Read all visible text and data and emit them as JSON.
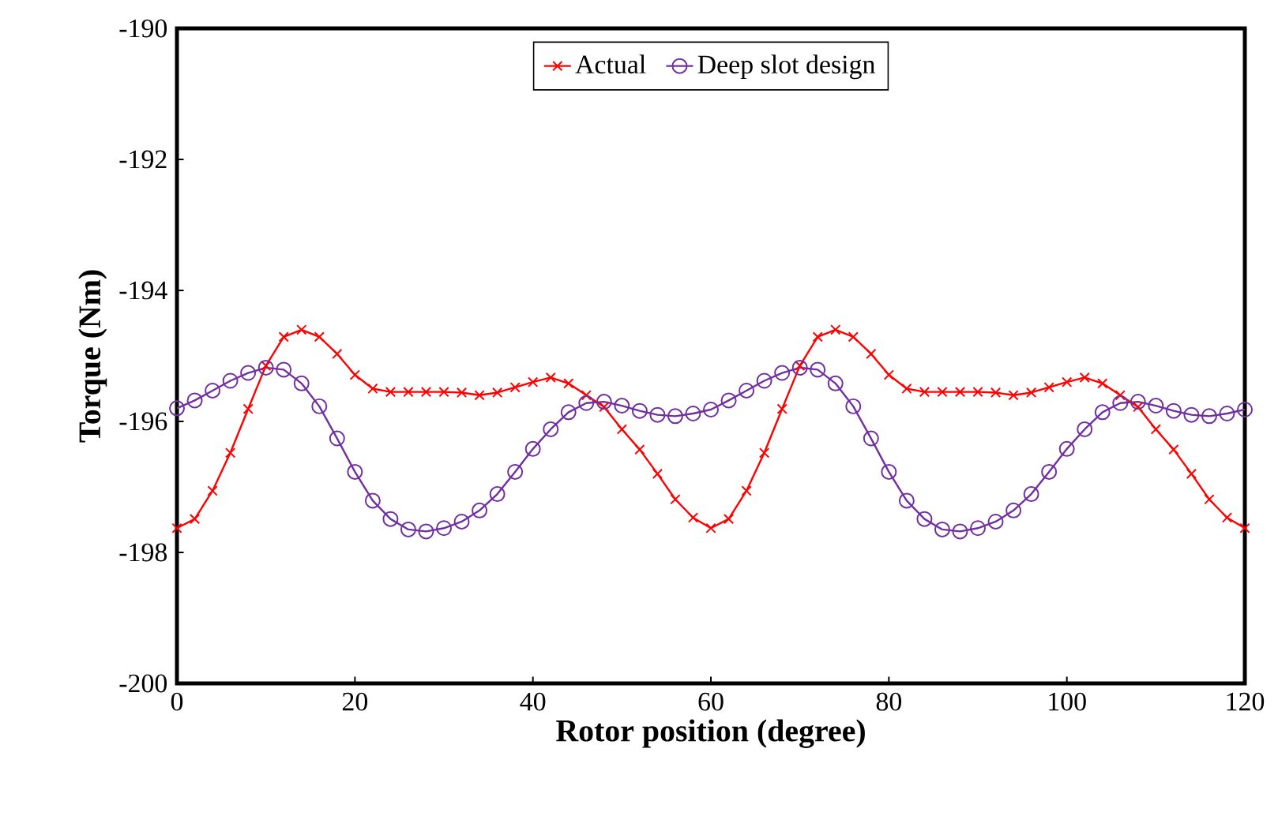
{
  "chart_data": {
    "type": "line",
    "xlabel": "Rotor position (degree)",
    "ylabel": "Torque (Nm)",
    "x": [
      0,
      2,
      4,
      6,
      8,
      10,
      12,
      14,
      16,
      18,
      20,
      22,
      24,
      26,
      28,
      30,
      32,
      34,
      36,
      38,
      40,
      42,
      44,
      46,
      48,
      50,
      52,
      54,
      56,
      58,
      60,
      62,
      64,
      66,
      68,
      70,
      72,
      74,
      76,
      78,
      80,
      82,
      84,
      86,
      88,
      90,
      92,
      94,
      96,
      98,
      100,
      102,
      104,
      106,
      108,
      110,
      112,
      114,
      116,
      118,
      120
    ],
    "series": [
      {
        "name": "Actual",
        "color": "#ff0000",
        "marker": "cross",
        "values": [
          -197.63,
          -197.49,
          -197.06,
          -196.48,
          -195.81,
          -195.15,
          -194.71,
          -194.6,
          -194.71,
          -194.97,
          -195.29,
          -195.5,
          -195.55,
          -195.55,
          -195.55,
          -195.55,
          -195.56,
          -195.6,
          -195.56,
          -195.48,
          -195.4,
          -195.33,
          -195.42,
          -195.6,
          -195.78,
          -196.12,
          -196.43,
          -196.8,
          -197.19,
          -197.47,
          -197.63,
          -197.49,
          -197.06,
          -196.48,
          -195.81,
          -195.15,
          -194.71,
          -194.6,
          -194.71,
          -194.97,
          -195.29,
          -195.5,
          -195.55,
          -195.55,
          -195.55,
          -195.55,
          -195.56,
          -195.6,
          -195.56,
          -195.48,
          -195.4,
          -195.33,
          -195.42,
          -195.6,
          -195.78,
          -196.12,
          -196.43,
          -196.8,
          -197.19,
          -197.47,
          -197.63
        ]
      },
      {
        "name": "Deep slot design",
        "color": "#7030a0",
        "marker": "circle",
        "values": [
          -195.8,
          -195.68,
          -195.53,
          -195.38,
          -195.26,
          -195.18,
          -195.21,
          -195.42,
          -195.77,
          -196.26,
          -196.77,
          -197.21,
          -197.49,
          -197.65,
          -197.68,
          -197.63,
          -197.53,
          -197.36,
          -197.11,
          -196.77,
          -196.42,
          -196.12,
          -195.86,
          -195.72,
          -195.7,
          -195.76,
          -195.84,
          -195.9,
          -195.92,
          -195.88,
          -195.82,
          -195.68,
          -195.53,
          -195.38,
          -195.26,
          -195.18,
          -195.21,
          -195.42,
          -195.77,
          -196.26,
          -196.77,
          -197.21,
          -197.49,
          -197.65,
          -197.68,
          -197.63,
          -197.53,
          -197.36,
          -197.11,
          -196.77,
          -196.42,
          -196.12,
          -195.86,
          -195.72,
          -195.7,
          -195.76,
          -195.84,
          -195.9,
          -195.92,
          -195.88,
          -195.82
        ]
      }
    ],
    "xlim": [
      0,
      120
    ],
    "xticks": [
      0,
      20,
      40,
      60,
      80,
      100,
      120
    ],
    "ylim": [
      -200,
      -190
    ],
    "yticks": [
      -200,
      -198,
      -196,
      -194,
      -192,
      -190
    ],
    "legend": "top"
  }
}
